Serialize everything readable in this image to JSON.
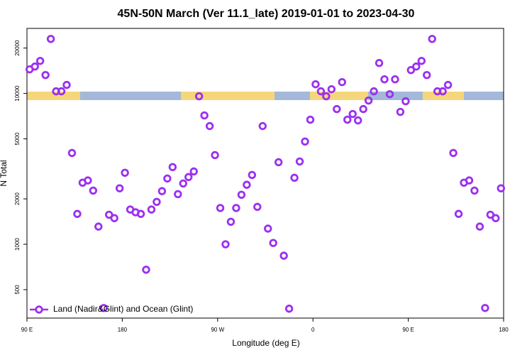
{
  "chart_data": {
    "type": "scatter",
    "title": "45N-50N March (Ver 11.1_late)   2019-01-01 to 2023-04-30",
    "x_label": "Longitude (deg E)",
    "y_label": "N Total",
    "xlim": [
      90,
      540
    ],
    "xticks": [
      {
        "value": 90,
        "label": "90 E"
      },
      180,
      {
        "value": 270,
        "label": "90 W"
      },
      {
        "value": 360,
        "label": "0"
      },
      {
        "value": 450,
        "label": "90 E"
      },
      {
        "value": 540,
        "label": "180"
      }
    ],
    "ylim": [
      324,
      27000
    ],
    "yticks": [
      500,
      1000,
      2000,
      5000,
      10000,
      20000
    ],
    "log_y": true,
    "legend": "lower left",
    "x": [
      92.5,
      97.5,
      102.5,
      107.5,
      112.5,
      117.5,
      122.5,
      127.5,
      132.5,
      137.5,
      142.5,
      147.5,
      152.5,
      157.5,
      162.5,
      167.5,
      172.5,
      177.5,
      182.5,
      187.5,
      192.5,
      197.5,
      202.5,
      207.5,
      212.5,
      217.5,
      222.5,
      227.5,
      232.5,
      237.5,
      242.5,
      247.5,
      252.5,
      257.5,
      262.5,
      267.5,
      272.5,
      277.5,
      282.5,
      287.5,
      292.5,
      297.5,
      302.5,
      307.5,
      312.5,
      317.5,
      322.5,
      327.5,
      332.5,
      337.5,
      342.5,
      347.5,
      352.5,
      357.5,
      362.5,
      367.5,
      372.5,
      377.5,
      382.5,
      387.5,
      392.5,
      397.5,
      402.5,
      407.5,
      412.5,
      417.5,
      422.5,
      427.5,
      432.5,
      437.5,
      442.5,
      447.5,
      452.5,
      457.5,
      462.5,
      467.5,
      472.5,
      477.5,
      482.5,
      487.5,
      492.5,
      497.5,
      502.5,
      507.5,
      512.5,
      517.5,
      522.5,
      527.5,
      532.5,
      537.5
    ],
    "series": [
      {
        "name": "Land (Nadir&Glint) and Ocean (Glint)",
        "color": "#9b30f0",
        "values": [
          14450,
          15080,
          16440,
          13250,
          23000,
          10330,
          10330,
          11390,
          4030,
          1590,
          2560,
          2650,
          2270,
          1310,
          378,
          1570,
          1490,
          2350,
          2980,
          1700,
          1630,
          1590,
          678,
          1700,
          1910,
          2250,
          2730,
          3250,
          2150,
          2530,
          2790,
          3040,
          9580,
          7150,
          6080,
          3900,
          1740,
          1000,
          1410,
          1740,
          2130,
          2480,
          2880,
          1770,
          6080,
          1270,
          1020,
          3500,
          840,
          374,
          2760,
          3540,
          4800,
          6700,
          11510,
          10330,
          9580,
          10670,
          7880,
          11890,
          6700,
          7310,
          6630,
          7880,
          8980,
          10330,
          15920,
          12410,
          9890,
          12410,
          7550,
          8880,
          14290,
          15080,
          16440,
          13250,
          23000,
          10330,
          10330,
          11390,
          4030,
          1590,
          2560,
          2650,
          2270,
          1310,
          378,
          1570,
          1490,
          2350
        ]
      }
    ]
  }
}
